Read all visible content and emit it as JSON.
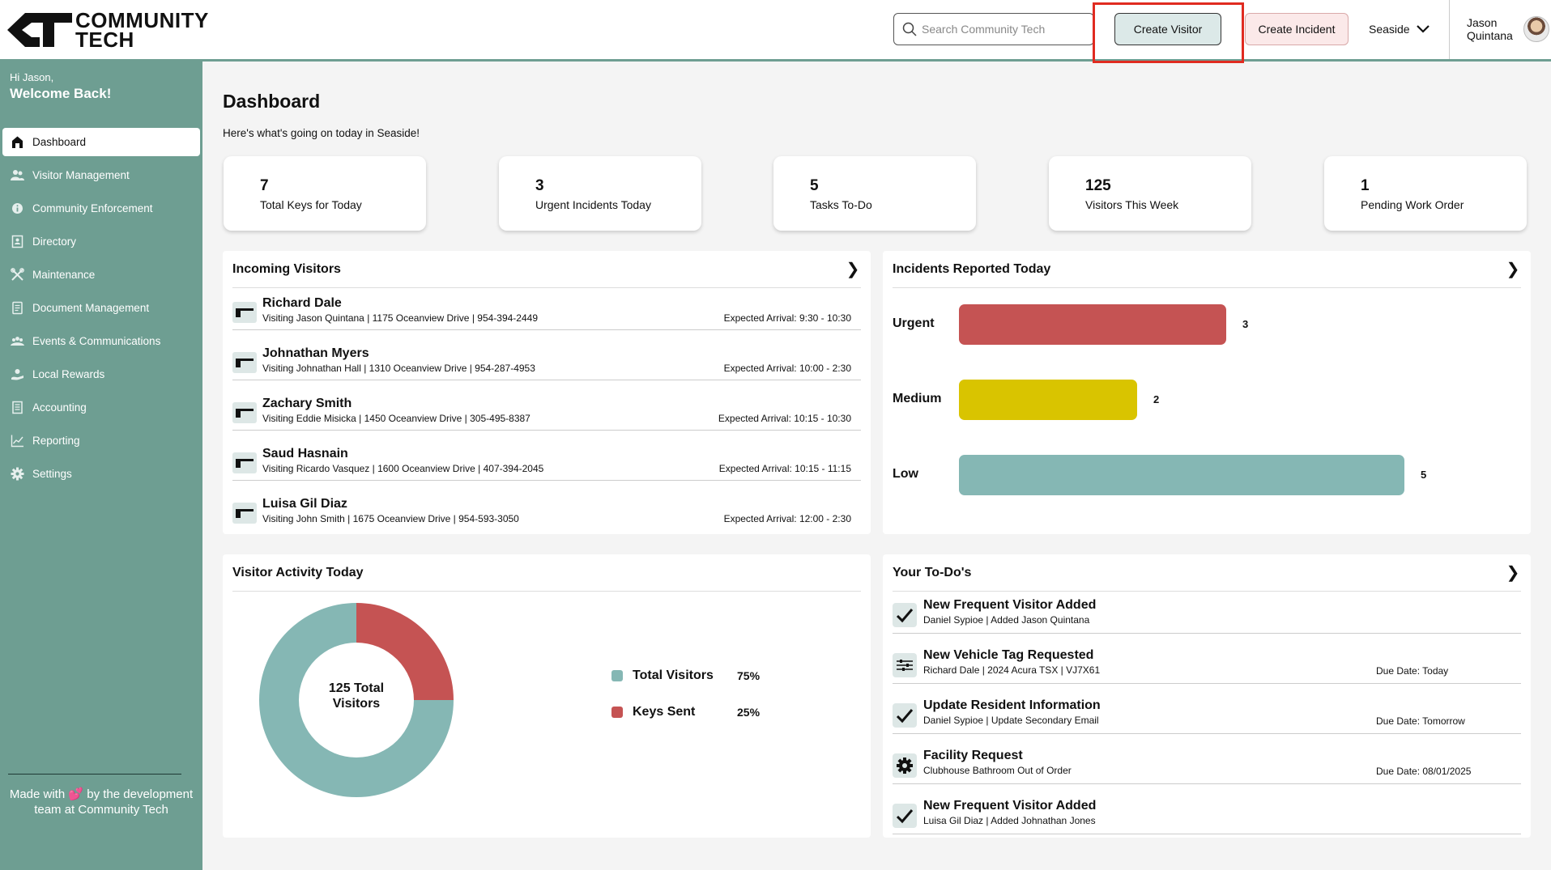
{
  "header": {
    "logo_line1": "COMMUNITY",
    "logo_line2": "TECH",
    "search_placeholder": "Search Community Tech",
    "create_visitor_label": "Create Visitor",
    "create_incident_label": "Create Incident",
    "community": "Seaside",
    "user_first": "Jason",
    "user_last": "Quintana"
  },
  "sidebar": {
    "greeting": "Hi Jason,",
    "welcome": "Welcome Back!",
    "items": [
      {
        "label": "Dashboard",
        "icon": "home-icon"
      },
      {
        "label": "Visitor Management",
        "icon": "people-icon"
      },
      {
        "label": "Community Enforcement",
        "icon": "info-icon"
      },
      {
        "label": "Directory",
        "icon": "directory-icon"
      },
      {
        "label": "Maintenance",
        "icon": "tools-icon"
      },
      {
        "label": "Document Management",
        "icon": "document-icon"
      },
      {
        "label": "Events & Communications",
        "icon": "group-icon"
      },
      {
        "label": "Local Rewards",
        "icon": "rewards-icon"
      },
      {
        "label": "Accounting",
        "icon": "ledger-icon"
      },
      {
        "label": "Reporting",
        "icon": "chart-icon"
      },
      {
        "label": "Settings",
        "icon": "gear-icon"
      }
    ],
    "footer_pre": "Made with",
    "footer_heart": "💕",
    "footer_post": "by the development team at Community Tech"
  },
  "page": {
    "title": "Dashboard",
    "subtitle": "Here's what's going on today in Seaside!"
  },
  "stats": [
    {
      "value": "7",
      "label": "Total Keys for Today"
    },
    {
      "value": "3",
      "label": "Urgent Incidents Today"
    },
    {
      "value": "5",
      "label": "Tasks To-Do"
    },
    {
      "value": "125",
      "label": "Visitors This Week"
    },
    {
      "value": "1",
      "label": "Pending Work Order"
    }
  ],
  "incoming_visitors": {
    "title": "Incoming Visitors",
    "rows": [
      {
        "name": "Richard Dale",
        "detail": "Visiting Jason Quintana | 1175 Oceanview Drive | 954-394-2449",
        "eta": "Expected Arrival: 9:30 - 10:30"
      },
      {
        "name": "Johnathan Myers",
        "detail": "Visiting Johnathan Hall | 1310 Oceanview Drive | 954-287-4953",
        "eta": "Expected Arrival: 10:00 - 2:30"
      },
      {
        "name": "Zachary Smith",
        "detail": "Visiting Eddie Misicka | 1450 Oceanview Drive | 305-495-8387",
        "eta": "Expected Arrival: 10:15 - 10:30"
      },
      {
        "name": "Saud Hasnain",
        "detail": "Visiting Ricardo Vasquez | 1600 Oceanview Drive | 407-394-2045",
        "eta": "Expected Arrival: 10:15 - 11:15"
      },
      {
        "name": "Luisa Gil Diaz",
        "detail": "Visiting John Smith | 1675 Oceanview Drive | 954-593-3050",
        "eta": "Expected Arrival: 12:00 - 2:30"
      }
    ]
  },
  "incidents": {
    "title": "Incidents Reported Today",
    "rows": [
      {
        "label": "Urgent",
        "value": 3,
        "display": "3",
        "color": "#c55353"
      },
      {
        "label": "Medium",
        "value": 2,
        "display": "2",
        "color": "#d9c400"
      },
      {
        "label": "Low",
        "value": 5,
        "display": "5",
        "color": "#85b7b4"
      }
    ]
  },
  "visitor_activity": {
    "title": "Visitor Activity Today",
    "center_line1": "125 Total",
    "center_line2": "Visitors",
    "legend": [
      {
        "label": "Total Visitors",
        "pct": "75%",
        "color": "#85b7b4"
      },
      {
        "label": "Keys Sent",
        "pct": "25%",
        "color": "#c55353"
      }
    ]
  },
  "chart_data": {
    "type": "pie",
    "labels": [
      "Total Visitors",
      "Keys Sent"
    ],
    "values": [
      75,
      25
    ],
    "colors": [
      "#85b7b4",
      "#c55353"
    ]
  },
  "todos": {
    "title": "Your To-Do's",
    "rows": [
      {
        "title": "New Frequent Visitor Added",
        "detail": "Daniel Sypioe | Added Jason Quintana",
        "due": "",
        "icon": "check-icon"
      },
      {
        "title": "New Vehicle Tag Requested",
        "detail": "Richard Dale | 2024 Acura TSX | VJ7X61",
        "due": "Due Date: Today",
        "icon": "sliders-icon"
      },
      {
        "title": "Update Resident Information",
        "detail": "Daniel Sypioe | Update Secondary Email",
        "due": "Due Date: Tomorrow",
        "icon": "check-icon"
      },
      {
        "title": "Facility Request",
        "detail": "Clubhouse Bathroom Out of Order",
        "due": "Due Date: 08/01/2025",
        "icon": "gear-icon"
      },
      {
        "title": "New Frequent Visitor Added",
        "detail": "Luisa Gil Diaz | Added Johnathan Jones",
        "due": "",
        "icon": "check-icon"
      }
    ]
  }
}
